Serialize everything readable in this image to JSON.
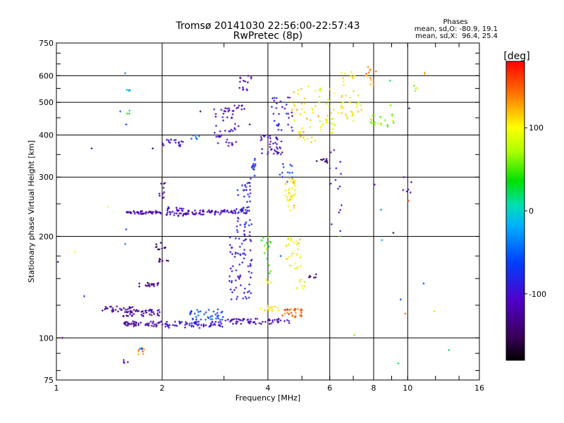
{
  "chart_data": {
    "type": "scatter",
    "title": "Tromsø 20141030 22:56:00-22:57:43",
    "subtitle": "RwPretec (8p)",
    "xlabel": "Frequency [MHz]",
    "ylabel": "Stationary phase Virtual Height [km]",
    "x_scale": "log",
    "y_scale": "log",
    "xlim": [
      1,
      16
    ],
    "ylim": [
      75,
      750
    ],
    "x_ticks": [
      1,
      2,
      4,
      6,
      8,
      10,
      16
    ],
    "y_ticks": [
      75,
      100,
      200,
      300,
      400,
      500,
      600,
      750
    ],
    "grid_x": [
      2,
      4,
      6,
      8,
      10
    ],
    "grid_y": [
      100,
      200,
      300,
      400,
      500,
      600
    ],
    "stats": {
      "heading": "Phases",
      "line1": "mean, sd,O: -80.9, 19.1",
      "line2": "mean, sd,X:  96.4, 25.4"
    },
    "colorbar": {
      "label": "[deg]",
      "min": -180,
      "max": 180,
      "ticks": [
        100,
        0,
        -100
      ]
    },
    "clusters": [
      {
        "x": [
          1.58,
          1.62
        ],
        "y": [
          540,
          545
        ],
        "phase": -20,
        "n": 4
      },
      {
        "x": [
          1.58,
          1.62
        ],
        "y": [
          460,
          475
        ],
        "phase": 30,
        "n": 3
      },
      {
        "x": [
          1.57,
          1.63
        ],
        "y": [
          236,
          236
        ],
        "phase": -115,
        "n": 12
      },
      {
        "x": [
          1.63,
          2.0
        ],
        "y": [
          233,
          238
        ],
        "phase": -118,
        "n": 40
      },
      {
        "x": [
          2.0,
          2.3
        ],
        "y": [
          230,
          245
        ],
        "phase": -112,
        "n": 30
      },
      {
        "x": [
          2.3,
          3.0
        ],
        "y": [
          232,
          240
        ],
        "phase": -110,
        "n": 50
      },
      {
        "x": [
          3.0,
          3.5
        ],
        "y": [
          233,
          240
        ],
        "phase": -105,
        "n": 25
      },
      {
        "x": [
          2.0,
          2.3
        ],
        "y": [
          370,
          390
        ],
        "phase": -100,
        "n": 20
      },
      {
        "x": [
          2.4,
          2.55
        ],
        "y": [
          388,
          400
        ],
        "phase": -40,
        "n": 6
      },
      {
        "x": [
          1.35,
          1.65
        ],
        "y": [
          119,
          124
        ],
        "phase": -130,
        "n": 30
      },
      {
        "x": [
          1.55,
          2.0
        ],
        "y": [
          116,
          122
        ],
        "phase": -120,
        "n": 45
      },
      {
        "x": [
          1.55,
          2.0
        ],
        "y": [
          108,
          112
        ],
        "phase": -125,
        "n": 45
      },
      {
        "x": [
          2.0,
          3.0
        ],
        "y": [
          107,
          112
        ],
        "phase": -95,
        "n": 70
      },
      {
        "x": [
          2.4,
          3.0
        ],
        "y": [
          113,
          122
        ],
        "phase": -60,
        "n": 40
      },
      {
        "x": [
          3.0,
          4.6
        ],
        "y": [
          110,
          114
        ],
        "phase": -110,
        "n": 60
      },
      {
        "x": [
          1.72,
          2.0
        ],
        "y": [
          142,
          146
        ],
        "phase": -130,
        "n": 20
      },
      {
        "x": [
          1.9,
          2.05
        ],
        "y": [
          182,
          192
        ],
        "phase": -150,
        "n": 10
      },
      {
        "x": [
          1.95,
          2.1
        ],
        "y": [
          168,
          172
        ],
        "phase": -140,
        "n": 8
      },
      {
        "x": [
          1.95,
          2.05
        ],
        "y": [
          260,
          290
        ],
        "phase": -110,
        "n": 10
      },
      {
        "x": [
          3.1,
          3.6
        ],
        "y": [
          130,
          200
        ],
        "phase": -90,
        "n": 70
      },
      {
        "x": [
          3.25,
          3.6
        ],
        "y": [
          200,
          290
        ],
        "phase": -85,
        "n": 50
      },
      {
        "x": [
          3.55,
          3.7
        ],
        "y": [
          280,
          350
        ],
        "phase": -75,
        "n": 15
      },
      {
        "x": [
          2.8,
          3.3
        ],
        "y": [
          370,
          480
        ],
        "phase": -105,
        "n": 40
      },
      {
        "x": [
          3.0,
          3.5
        ],
        "y": [
          470,
          490
        ],
        "phase": -115,
        "n": 15
      },
      {
        "x": [
          3.3,
          3.6
        ],
        "y": [
          540,
          600
        ],
        "phase": -120,
        "n": 15
      },
      {
        "x": [
          3.8,
          4.4
        ],
        "y": [
          350,
          400
        ],
        "phase": -105,
        "n": 40
      },
      {
        "x": [
          4.1,
          4.7
        ],
        "y": [
          400,
          520
        ],
        "phase": -90,
        "n": 30
      },
      {
        "x": [
          4.3,
          4.7
        ],
        "y": [
          290,
          330
        ],
        "phase": -70,
        "n": 12
      },
      {
        "x": [
          3.8,
          4.1
        ],
        "y": [
          150,
          200
        ],
        "phase": 50,
        "n": 15
      },
      {
        "x": [
          3.95,
          4.1
        ],
        "y": [
          145,
          150
        ],
        "phase": 100,
        "n": 6
      },
      {
        "x": [
          4.45,
          4.8
        ],
        "y": [
          235,
          300
        ],
        "phase": 110,
        "n": 40
      },
      {
        "x": [
          4.5,
          5.0
        ],
        "y": [
          160,
          200
        ],
        "phase": 100,
        "n": 25
      },
      {
        "x": [
          4.4,
          5.0
        ],
        "y": [
          115,
          122
        ],
        "phase": 150,
        "n": 30
      },
      {
        "x": [
          3.8,
          4.3
        ],
        "y": [
          120,
          125
        ],
        "phase": 110,
        "n": 15
      },
      {
        "x": [
          4.6,
          5.6
        ],
        "y": [
          380,
          560
        ],
        "phase": 110,
        "n": 40
      },
      {
        "x": [
          5.5,
          6.0
        ],
        "y": [
          330,
          340
        ],
        "phase": -150,
        "n": 10
      },
      {
        "x": [
          5.6,
          6.2
        ],
        "y": [
          400,
          560
        ],
        "phase": 95,
        "n": 30
      },
      {
        "x": [
          6.3,
          7.5
        ],
        "y": [
          440,
          620
        ],
        "phase": 100,
        "n": 40
      },
      {
        "x": [
          7.6,
          8.2
        ],
        "y": [
          540,
          640
        ],
        "phase": 130,
        "n": 12
      },
      {
        "x": [
          7.8,
          9.2
        ],
        "y": [
          420,
          460
        ],
        "phase": 60,
        "n": 20
      },
      {
        "x": [
          6.0,
          6.5
        ],
        "y": [
          200,
          400
        ],
        "phase": -100,
        "n": 15
      },
      {
        "x": [
          4.8,
          5.2
        ],
        "y": [
          140,
          150
        ],
        "phase": 90,
        "n": 8
      },
      {
        "x": [
          5.2,
          5.5
        ],
        "y": [
          150,
          160
        ],
        "phase": -140,
        "n": 6
      },
      {
        "x": [
          1.7,
          1.78
        ],
        "y": [
          88,
          95
        ],
        "phase": 130,
        "n": 8
      },
      {
        "x": [
          1.55,
          1.6
        ],
        "y": [
          82,
          86
        ],
        "phase": -120,
        "n": 4
      },
      {
        "x": [
          1.72,
          1.76
        ],
        "y": [
          92,
          94
        ],
        "phase": -40,
        "n": 3
      },
      {
        "x": [
          9.6,
          10.4
        ],
        "y": [
          270,
          290
        ],
        "phase": -110,
        "n": 5
      },
      {
        "x": [
          10.3,
          10.6
        ],
        "y": [
          540,
          560
        ],
        "phase": 70,
        "n": 4
      },
      {
        "x": [
          11.1,
          11.2
        ],
        "y": [
          600,
          615
        ],
        "phase": 120,
        "n": 2
      }
    ],
    "points": [
      {
        "x": 1.01,
        "y": 168,
        "phase": -120
      },
      {
        "x": 1.04,
        "y": 100,
        "phase": -120
      },
      {
        "x": 1.13,
        "y": 180,
        "phase": 100
      },
      {
        "x": 1.2,
        "y": 133,
        "phase": -70
      },
      {
        "x": 1.26,
        "y": 365,
        "phase": -130
      },
      {
        "x": 1.4,
        "y": 245,
        "phase": 100
      },
      {
        "x": 1.52,
        "y": 470,
        "phase": -50
      },
      {
        "x": 1.57,
        "y": 610,
        "phase": -40
      },
      {
        "x": 1.57,
        "y": 190,
        "phase": -40
      },
      {
        "x": 1.58,
        "y": 210,
        "phase": -70
      },
      {
        "x": 1.58,
        "y": 430,
        "phase": -60
      },
      {
        "x": 1.88,
        "y": 365,
        "phase": -150
      },
      {
        "x": 2.57,
        "y": 470,
        "phase": -150
      },
      {
        "x": 3.55,
        "y": 430,
        "phase": -140
      },
      {
        "x": 4.35,
        "y": 175,
        "phase": -60
      },
      {
        "x": 6.4,
        "y": 200,
        "phase": 50
      },
      {
        "x": 7.05,
        "y": 102,
        "phase": 60
      },
      {
        "x": 8.05,
        "y": 285,
        "phase": -110
      },
      {
        "x": 8.4,
        "y": 240,
        "phase": -30
      },
      {
        "x": 8.45,
        "y": 195,
        "phase": -20
      },
      {
        "x": 8.9,
        "y": 580,
        "phase": 20
      },
      {
        "x": 8.95,
        "y": 490,
        "phase": 60
      },
      {
        "x": 9.1,
        "y": 205,
        "phase": -160
      },
      {
        "x": 9.4,
        "y": 84,
        "phase": 20
      },
      {
        "x": 9.55,
        "y": 130,
        "phase": -60
      },
      {
        "x": 9.75,
        "y": 300,
        "phase": -120
      },
      {
        "x": 9.85,
        "y": 118,
        "phase": 150
      },
      {
        "x": 10.05,
        "y": 255,
        "phase": 150
      },
      {
        "x": 10.1,
        "y": 480,
        "phase": -110
      },
      {
        "x": 11.1,
        "y": 145,
        "phase": -60
      },
      {
        "x": 11.9,
        "y": 120,
        "phase": 80
      },
      {
        "x": 13.1,
        "y": 92,
        "phase": 20
      }
    ]
  }
}
